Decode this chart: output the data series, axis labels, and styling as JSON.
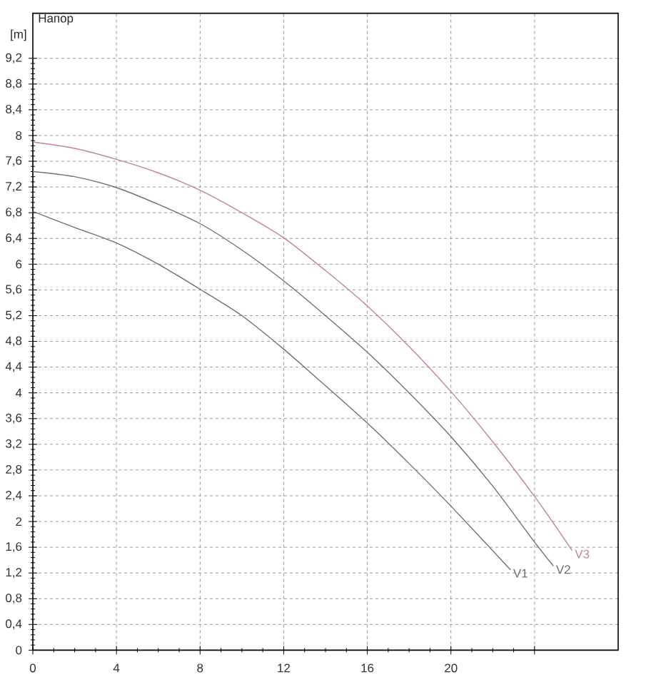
{
  "chart_data": {
    "type": "line",
    "title": "Напор",
    "ylabel": "[m]",
    "xlim": [
      0,
      28
    ],
    "ylim": [
      0,
      9.9
    ],
    "xticks": [
      0,
      4,
      8,
      12,
      16,
      20,
      {
        "value": 24,
        "label": null
      }
    ],
    "yticks": [
      0,
      {
        "value": 0.4,
        "label": "0,4"
      },
      {
        "value": 0.8,
        "label": "0,8"
      },
      {
        "value": 1.2,
        "label": "1,2"
      },
      {
        "value": 1.6,
        "label": "1,6"
      },
      2,
      {
        "value": 2.4,
        "label": "2,4"
      },
      {
        "value": 2.8,
        "label": "2,8"
      },
      {
        "value": 3.2,
        "label": "3,2"
      },
      {
        "value": 3.6,
        "label": "3,6"
      },
      4,
      {
        "value": 4.4,
        "label": "4,4"
      },
      {
        "value": 4.8,
        "label": "4,8"
      },
      {
        "value": 5.2,
        "label": "5,2"
      },
      {
        "value": 5.6,
        "label": "5,6"
      },
      6,
      {
        "value": 6.4,
        "label": "6,4"
      },
      {
        "value": 6.8,
        "label": "6,8"
      },
      {
        "value": 7.2,
        "label": "7,2"
      },
      {
        "value": 7.6,
        "label": "7,6"
      },
      8,
      {
        "value": 8.4,
        "label": "8,4"
      },
      {
        "value": 8.8,
        "label": "8,8"
      },
      {
        "value": 9.2,
        "label": "9,2"
      }
    ],
    "grid": true,
    "series": [
      {
        "name": "V1",
        "color": "#707070",
        "x": [
          0,
          2,
          4,
          6,
          8,
          10,
          12,
          14,
          16,
          18,
          20,
          22.85
        ],
        "values": [
          6.82,
          6.57,
          6.33,
          6.0,
          5.61,
          5.2,
          4.68,
          4.11,
          3.53,
          2.9,
          2.24,
          1.25
        ]
      },
      {
        "name": "V2",
        "color": "#7a6c72",
        "x": [
          0,
          2,
          4,
          6,
          8,
          10,
          12,
          14,
          16,
          18,
          20,
          22,
          24,
          24.9
        ],
        "values": [
          7.44,
          7.36,
          7.19,
          6.93,
          6.63,
          6.22,
          5.74,
          5.2,
          4.63,
          4.0,
          3.32,
          2.55,
          1.68,
          1.31
        ]
      },
      {
        "name": "V3",
        "color": "#c4848f",
        "x": [
          0,
          2,
          4,
          6,
          8,
          10,
          12,
          14,
          16,
          18,
          20,
          22,
          24,
          25.8
        ],
        "values": [
          7.9,
          7.8,
          7.63,
          7.42,
          7.15,
          6.8,
          6.41,
          5.9,
          5.35,
          4.72,
          4.02,
          3.24,
          2.39,
          1.55
        ]
      }
    ]
  }
}
